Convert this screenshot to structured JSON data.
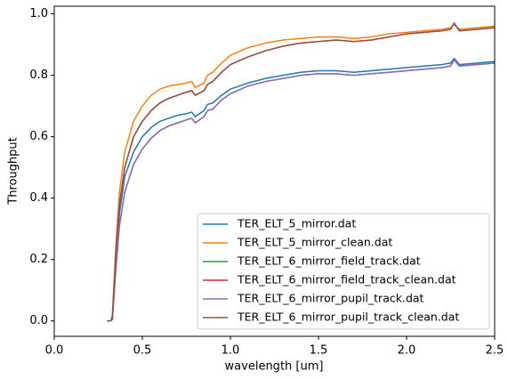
{
  "chart_data": {
    "type": "line",
    "xlabel": "wavelength [um]",
    "ylabel": "Throughput",
    "x": [
      0.3,
      0.32,
      0.33,
      0.35,
      0.37,
      0.4,
      0.45,
      0.5,
      0.55,
      0.6,
      0.65,
      0.7,
      0.75,
      0.78,
      0.8,
      0.85,
      0.87,
      0.9,
      0.95,
      1.0,
      1.1,
      1.2,
      1.3,
      1.4,
      1.5,
      1.6,
      1.7,
      1.8,
      1.9,
      2.0,
      2.1,
      2.2,
      2.25,
      2.27,
      2.3,
      2.4,
      2.5
    ],
    "series": [
      {
        "name": "TER_ELT_5_mirror.dat",
        "color": "#1f77b4",
        "values": [
          0,
          0,
          0.01,
          0.2,
          0.35,
          0.47,
          0.55,
          0.6,
          0.63,
          0.65,
          0.66,
          0.67,
          0.675,
          0.68,
          0.665,
          0.685,
          0.705,
          0.71,
          0.735,
          0.755,
          0.775,
          0.79,
          0.8,
          0.81,
          0.815,
          0.815,
          0.81,
          0.815,
          0.82,
          0.825,
          0.83,
          0.835,
          0.84,
          0.855,
          0.835,
          0.84,
          0.845
        ]
      },
      {
        "name": "TER_ELT_5_mirror_clean.dat",
        "color": "#ff7f0e",
        "values": [
          0,
          0,
          0.02,
          0.25,
          0.42,
          0.55,
          0.65,
          0.7,
          0.735,
          0.755,
          0.765,
          0.77,
          0.775,
          0.78,
          0.76,
          0.775,
          0.8,
          0.81,
          0.84,
          0.865,
          0.89,
          0.905,
          0.915,
          0.92,
          0.925,
          0.925,
          0.92,
          0.925,
          0.935,
          0.94,
          0.945,
          0.95,
          0.955,
          0.965,
          0.95,
          0.955,
          0.96
        ]
      },
      {
        "name": "TER_ELT_6_mirror_field_track.dat",
        "color": "#2ca02c",
        "values": [
          0,
          0,
          0.005,
          0.17,
          0.31,
          0.42,
          0.51,
          0.56,
          0.595,
          0.62,
          0.635,
          0.645,
          0.655,
          0.66,
          0.645,
          0.665,
          0.685,
          0.69,
          0.72,
          0.74,
          0.765,
          0.78,
          0.79,
          0.8,
          0.805,
          0.805,
          0.8,
          0.805,
          0.81,
          0.815,
          0.82,
          0.825,
          0.83,
          0.85,
          0.83,
          0.835,
          0.84
        ]
      },
      {
        "name": "TER_ELT_6_mirror_field_track_clean.dat",
        "color": "#d62728",
        "values": [
          0,
          0,
          0.01,
          0.22,
          0.38,
          0.5,
          0.6,
          0.65,
          0.685,
          0.71,
          0.725,
          0.735,
          0.745,
          0.75,
          0.735,
          0.75,
          0.77,
          0.78,
          0.81,
          0.835,
          0.86,
          0.88,
          0.895,
          0.905,
          0.91,
          0.915,
          0.91,
          0.915,
          0.925,
          0.935,
          0.94,
          0.945,
          0.95,
          0.97,
          0.945,
          0.95,
          0.955
        ]
      },
      {
        "name": "TER_ELT_6_mirror_pupil_track.dat",
        "color": "#9467bd",
        "values": [
          0,
          0,
          0.005,
          0.17,
          0.31,
          0.42,
          0.51,
          0.56,
          0.595,
          0.62,
          0.635,
          0.645,
          0.655,
          0.66,
          0.645,
          0.665,
          0.685,
          0.69,
          0.72,
          0.74,
          0.765,
          0.78,
          0.79,
          0.8,
          0.805,
          0.805,
          0.8,
          0.805,
          0.81,
          0.815,
          0.82,
          0.825,
          0.83,
          0.85,
          0.83,
          0.835,
          0.84
        ]
      },
      {
        "name": "TER_ELT_6_mirror_pupil_track_clean.dat",
        "color": "#8c564b",
        "values": [
          0,
          0,
          0.01,
          0.22,
          0.38,
          0.5,
          0.6,
          0.65,
          0.685,
          0.71,
          0.725,
          0.735,
          0.745,
          0.75,
          0.735,
          0.75,
          0.77,
          0.78,
          0.81,
          0.835,
          0.86,
          0.88,
          0.895,
          0.905,
          0.91,
          0.915,
          0.91,
          0.915,
          0.925,
          0.935,
          0.94,
          0.945,
          0.95,
          0.97,
          0.945,
          0.95,
          0.955
        ]
      }
    ],
    "xlim": [
      0,
      2.5
    ],
    "ylim": [
      -0.05,
      1.025
    ],
    "xticks": [
      {
        "value": 0,
        "label": "0.0"
      },
      0.5,
      {
        "value": 1,
        "label": "1.0"
      },
      1.5,
      {
        "value": 2,
        "label": "2.0"
      },
      2.5
    ],
    "yticks": [
      {
        "value": 0,
        "label": "0.0"
      },
      0.2,
      0.4,
      0.6,
      0.8,
      {
        "value": 1,
        "label": "1.0"
      }
    ],
    "legend": "lower right",
    "grid": false
  }
}
